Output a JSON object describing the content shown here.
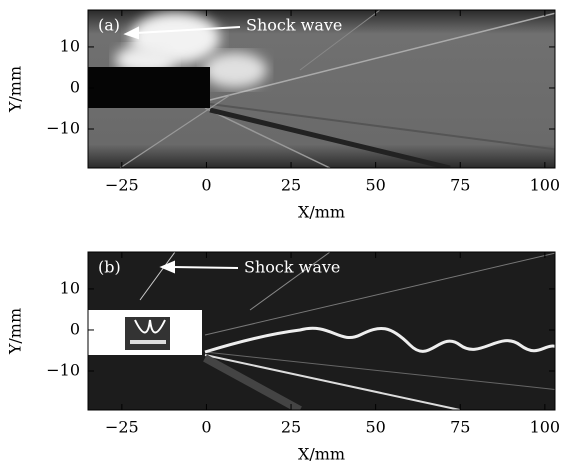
{
  "chart_data": [
    {
      "type": "image",
      "panel_label": "(a)",
      "annotation": "Shock wave",
      "xlabel": "X/mm",
      "ylabel": "Y/mm",
      "xlim": [
        -35,
        103
      ],
      "ylim": [
        -19.5,
        19
      ],
      "xticks": [
        {
          "value": -25,
          "label": "−25"
        },
        0,
        25,
        50,
        75,
        100
      ],
      "yticks": [
        {
          "value": -10,
          "label": "−10"
        },
        0,
        10
      ]
    },
    {
      "type": "image",
      "panel_label": "(b)",
      "annotation": "Shock wave",
      "xlabel": "X/mm",
      "ylabel": "Y/mm",
      "xlim": [
        -35,
        103
      ],
      "ylim": [
        -19.5,
        19
      ],
      "xticks": [
        {
          "value": -25,
          "label": "−25"
        },
        0,
        25,
        50,
        75,
        100
      ],
      "yticks": [
        {
          "value": -10,
          "label": "−10"
        },
        0,
        10
      ]
    }
  ]
}
